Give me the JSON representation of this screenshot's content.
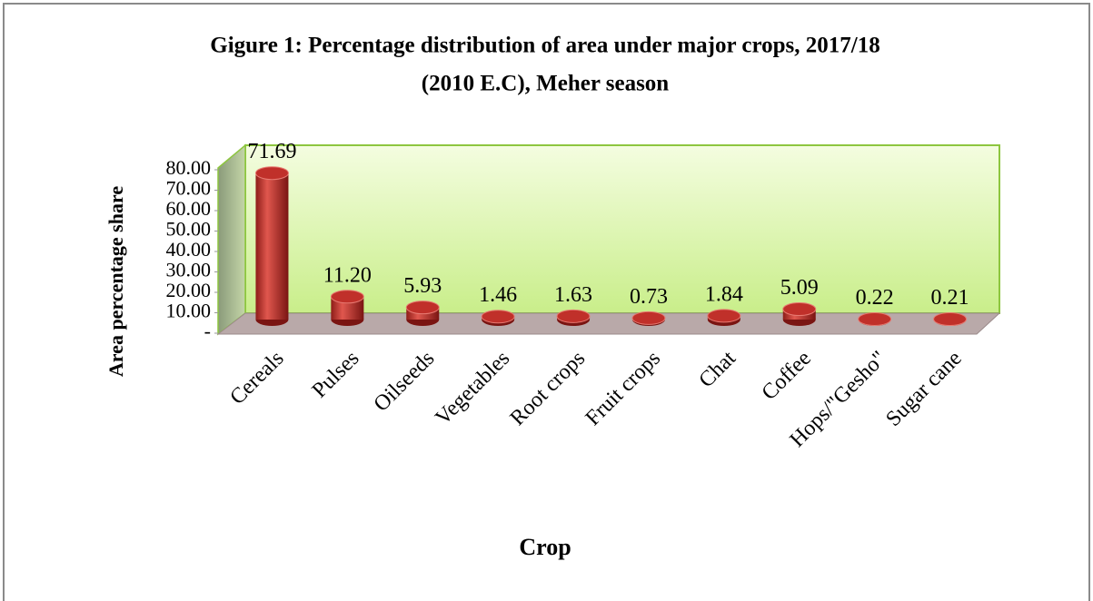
{
  "chart_data": {
    "type": "bar",
    "title": [
      "Gigure 1: Percentage distribution of area under major crops, 2017/18",
      "(2010 E.C), Meher season"
    ],
    "x_label": "Crop",
    "y_label": "Area percentage share",
    "categories": [
      "Cereals",
      "Pulses",
      "Oilseeds",
      "Vegetables",
      "Root crops",
      "Fruit crops",
      "Chat",
      "Coffee",
      "Hops/\"Gesho\"",
      "Sugar cane"
    ],
    "values": [
      71.69,
      11.2,
      5.93,
      1.46,
      1.63,
      0.73,
      1.84,
      5.09,
      0.22,
      0.21
    ],
    "value_labels": [
      "71.69",
      "11.20",
      "5.93",
      "1.46",
      "1.63",
      "0.73",
      "1.84",
      "5.09",
      "0.22",
      "0.21"
    ],
    "color": "#c0302a",
    "ylim": [
      0,
      80
    ],
    "yticks": [
      {
        "value": 0,
        "label": "-"
      },
      {
        "value": 10,
        "label": "10.00"
      },
      {
        "value": 20,
        "label": "20.00"
      },
      {
        "value": 30,
        "label": "30.00"
      },
      {
        "value": 40,
        "label": "40.00"
      },
      {
        "value": 50,
        "label": "50.00"
      },
      {
        "value": 60,
        "label": "60.00"
      },
      {
        "value": 70,
        "label": "70.00"
      },
      {
        "value": 80,
        "label": "80.00"
      }
    ]
  }
}
